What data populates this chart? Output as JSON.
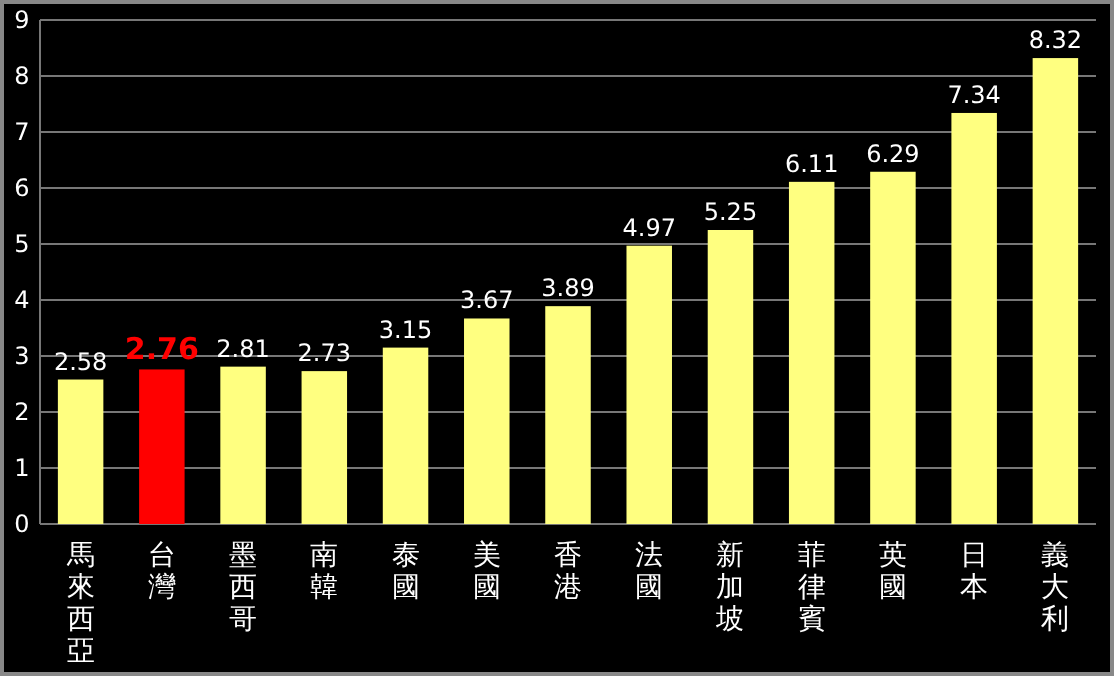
{
  "chart_data": {
    "type": "bar",
    "categories": [
      "馬來西亞",
      "台灣",
      "墨西哥",
      "南韓",
      "泰國",
      "美國",
      "香港",
      "法國",
      "新加坡",
      "菲律賓",
      "英國",
      "日本",
      "義大利"
    ],
    "values": [
      2.58,
      2.76,
      2.81,
      2.73,
      3.15,
      3.67,
      3.89,
      4.97,
      5.25,
      6.11,
      6.29,
      7.34,
      8.32
    ],
    "colors": [
      "#ffff80",
      "#ff0000",
      "#ffff80",
      "#ffff80",
      "#ffff80",
      "#ffff80",
      "#ffff80",
      "#ffff80",
      "#ffff80",
      "#ffff80",
      "#ffff80",
      "#ffff80",
      "#ffff80"
    ],
    "ylim": [
      0,
      9
    ],
    "yticks": [
      0,
      1,
      2,
      3,
      4,
      5,
      6,
      7,
      8,
      9
    ],
    "grid": "y",
    "data_labels": true
  }
}
